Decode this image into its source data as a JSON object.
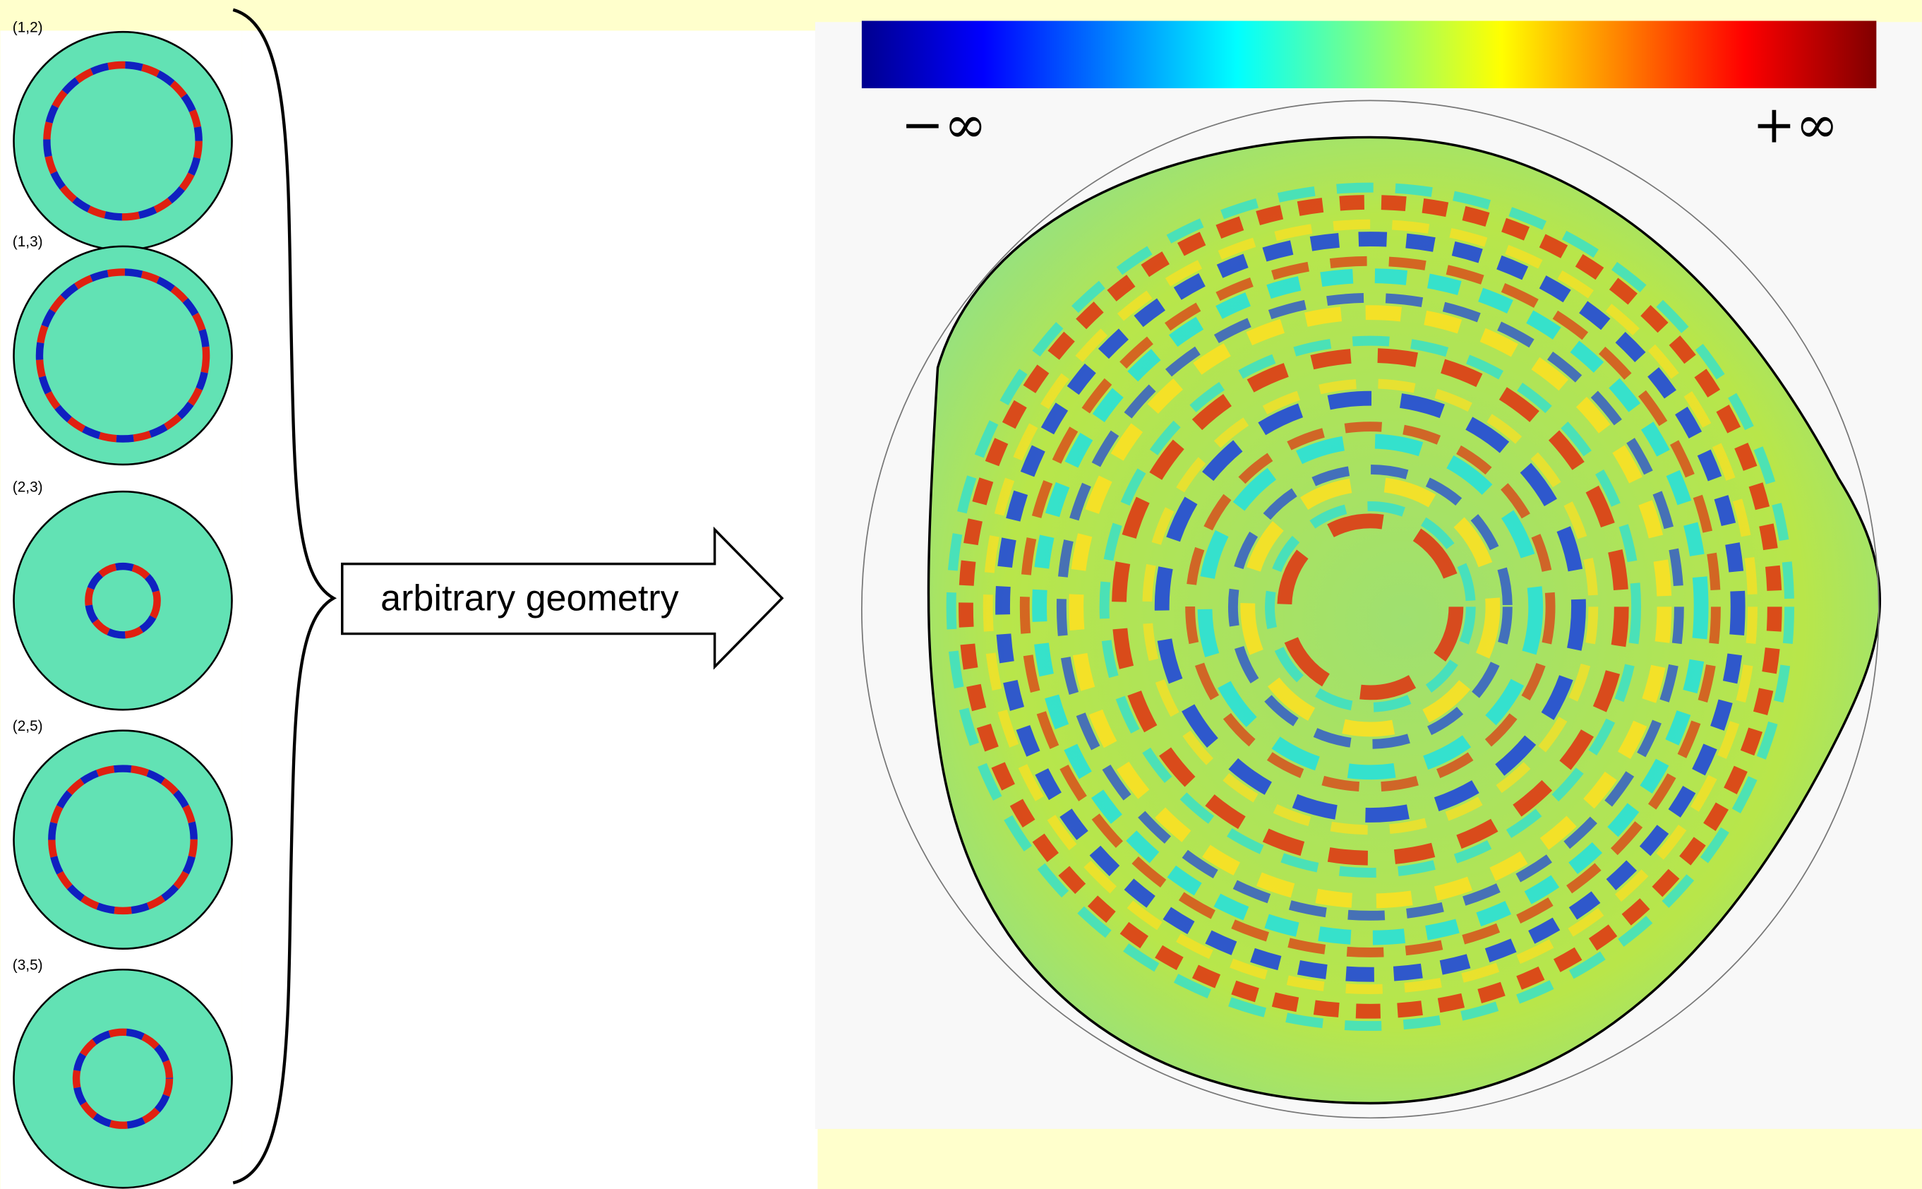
{
  "panels": [
    {
      "label": "(1,2)"
    },
    {
      "label": "(1,3)"
    },
    {
      "label": "(2,3)"
    },
    {
      "label": "(2,5)"
    },
    {
      "label": "(3,5)"
    }
  ],
  "arrow": {
    "label": "arbitrary geometry"
  },
  "colorbar": {
    "min_label": "−∞",
    "max_label": "+∞"
  }
}
